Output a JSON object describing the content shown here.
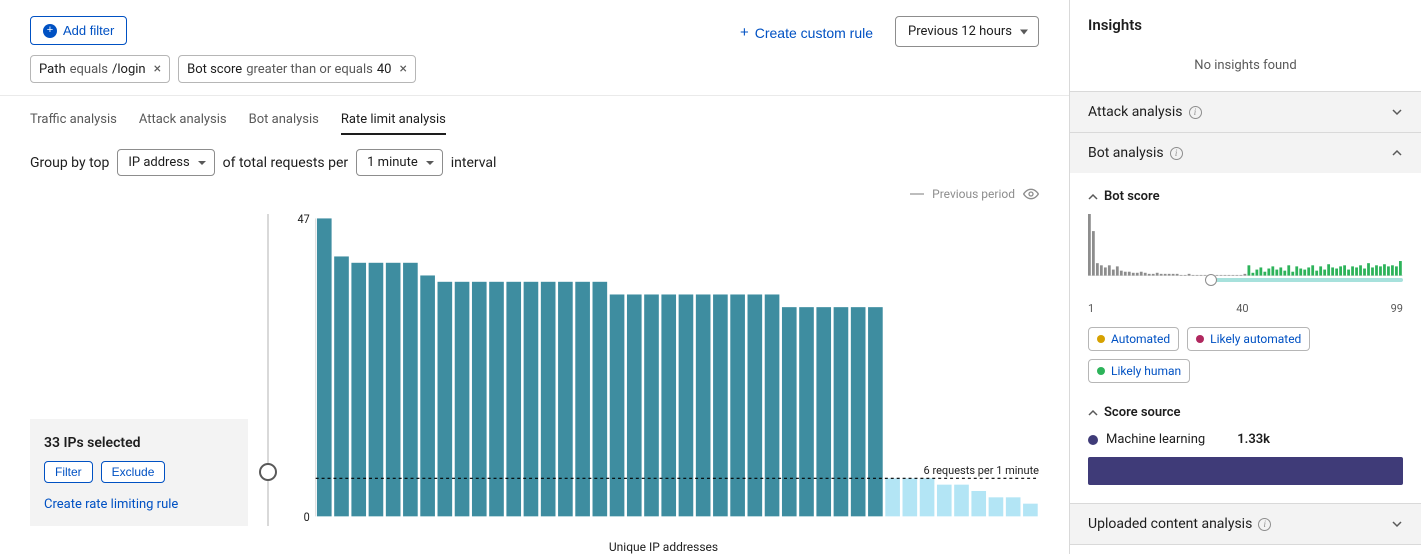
{
  "header": {
    "add_filter": "Add filter",
    "create_rule": "Create custom rule",
    "time_range": "Previous 12 hours",
    "filters": [
      {
        "field": "Path",
        "op": "equals",
        "value": "/login"
      },
      {
        "field": "Bot score",
        "op": "greater than or equals",
        "value": "40"
      }
    ]
  },
  "tabs": {
    "items": [
      "Traffic analysis",
      "Attack analysis",
      "Bot analysis",
      "Rate limit analysis"
    ],
    "active": 3
  },
  "groupby": {
    "prefix": "Group by top",
    "dim": "IP address",
    "mid": "of total requests per",
    "interval": "1 minute",
    "suffix": "interval"
  },
  "legend": {
    "previous": "Previous period"
  },
  "chart": {
    "type": "bar",
    "y_max": 47,
    "y_min": 0,
    "threshold_value": 6,
    "threshold_label": "6 requests per 1 minute",
    "selected_count": 33,
    "bar_color": "#3e8da0",
    "unselected_color": "#b3e5f5",
    "grid_color": "#d9d9d9",
    "threshold_color": "#000000",
    "background": "#ffffff",
    "bars": [
      47,
      41,
      40,
      40,
      40,
      40,
      38,
      37,
      37,
      37,
      37,
      37,
      37,
      37,
      37,
      37,
      37,
      35,
      35,
      35,
      35,
      35,
      35,
      35,
      35,
      35,
      35,
      33,
      33,
      33,
      33,
      33,
      33,
      6,
      6,
      6,
      5,
      5,
      4,
      3,
      3,
      2
    ],
    "xLabel": "Unique IP addresses"
  },
  "selection": {
    "title": "33 IPs selected",
    "filter": "Filter",
    "exclude": "Exclude",
    "create_rule": "Create rate limiting rule"
  },
  "insights": {
    "title": "Insights",
    "empty": "No insights found",
    "sections": {
      "attack": "Attack analysis",
      "bot": "Bot analysis",
      "uploaded": "Uploaded content analysis"
    },
    "bot": {
      "score_title": "Bot score",
      "range_min": "1",
      "range_mid": "40",
      "range_max": "99",
      "handle_pos_pct": 39,
      "spark": {
        "gray_color": "#8d8d8d",
        "green_color": "#2db35a",
        "bars": [
          58,
          42,
          12,
          10,
          8,
          10,
          6,
          9,
          5,
          4,
          4,
          3,
          3,
          4,
          3,
          2,
          2,
          3,
          2,
          2,
          2,
          2,
          2,
          1,
          1,
          2,
          1,
          1,
          1,
          1,
          1,
          1,
          1,
          1,
          1,
          1,
          1,
          1,
          1,
          2,
          10,
          3,
          6,
          8,
          4,
          7,
          9,
          6,
          8,
          5,
          10,
          4,
          9,
          7,
          6,
          8,
          10,
          5,
          9,
          6,
          11,
          8,
          7,
          9,
          10,
          6,
          9,
          8,
          10,
          7,
          12,
          8,
          10,
          9,
          11,
          9,
          10,
          9,
          14
        ],
        "green_from": 40
      },
      "pills": [
        {
          "label": "Automated",
          "color": "#d6a100"
        },
        {
          "label": "Likely automated",
          "color": "#b0285f"
        },
        {
          "label": "Likely human",
          "color": "#2db35a"
        }
      ],
      "source_title": "Score source",
      "source": {
        "label": "Machine learning",
        "value": "1.33k",
        "color": "#3f3b78"
      }
    }
  }
}
